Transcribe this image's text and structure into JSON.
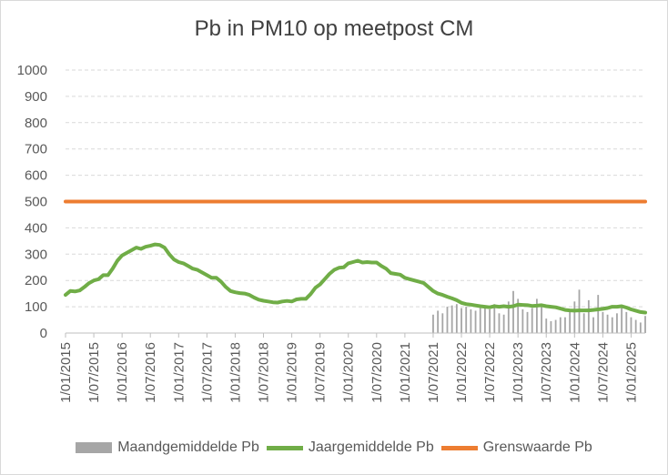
{
  "chart_data": {
    "type": "line",
    "title": "Pb in PM10 op meetpost CM",
    "xlabel": "",
    "ylabel": "",
    "ylim": [
      0,
      1000
    ],
    "yticks": [
      0,
      100,
      200,
      300,
      400,
      500,
      600,
      700,
      800,
      900,
      1000
    ],
    "xticks": [
      "1/01/2015",
      "1/07/2015",
      "1/01/2016",
      "1/07/2016",
      "1/01/2017",
      "1/07/2017",
      "1/01/2018",
      "1/07/2018",
      "1/01/2019",
      "1/07/2019",
      "1/01/2020",
      "1/07/2020",
      "1/01/2021",
      "1/07/2021",
      "1/01/2022",
      "1/07/2022",
      "1/01/2023",
      "1/07/2023",
      "1/01/2024",
      "1/07/2024",
      "1/01/2025"
    ],
    "x_unit": "months since 1/01/2015",
    "grid": true,
    "legend_position": "bottom",
    "series": [
      {
        "name": "Maandgemiddelde Pb",
        "type": "bar",
        "color": "#a6a6a6",
        "x": [
          78,
          79,
          80,
          81,
          82,
          83,
          84,
          85,
          86,
          87,
          88,
          89,
          90,
          91,
          92,
          93,
          94,
          95,
          96,
          97,
          98,
          99,
          100,
          101,
          102,
          103,
          104,
          105,
          106,
          107,
          108,
          109,
          110,
          111,
          112,
          113,
          114,
          115,
          116,
          117,
          118,
          119,
          120,
          121,
          122,
          123
        ],
        "values": [
          70,
          85,
          75,
          100,
          105,
          110,
          95,
          100,
          90,
          85,
          95,
          100,
          90,
          110,
          75,
          70,
          120,
          160,
          130,
          90,
          80,
          95,
          130,
          100,
          55,
          45,
          50,
          60,
          60,
          90,
          120,
          165,
          75,
          125,
          60,
          145,
          80,
          70,
          60,
          75,
          95,
          80,
          60,
          50,
          40,
          65
        ]
      },
      {
        "name": "Jaargemiddelde Pb",
        "type": "line",
        "color": "#70ad47",
        "x": [
          0,
          1,
          2,
          3,
          4,
          5,
          6,
          7,
          8,
          9,
          10,
          11,
          12,
          13,
          14,
          15,
          16,
          17,
          18,
          19,
          20,
          21,
          22,
          23,
          24,
          25,
          26,
          27,
          28,
          29,
          30,
          31,
          32,
          33,
          34,
          35,
          36,
          37,
          38,
          39,
          40,
          41,
          42,
          43,
          44,
          45,
          46,
          47,
          48,
          49,
          50,
          51,
          52,
          53,
          54,
          55,
          56,
          57,
          58,
          59,
          60,
          61,
          62,
          63,
          64,
          65,
          66,
          67,
          68,
          69,
          70,
          71,
          72,
          73,
          74,
          75,
          76,
          77,
          78,
          79,
          80,
          81,
          82,
          83,
          84,
          85,
          86,
          87,
          88,
          89,
          90,
          91,
          92,
          93,
          94,
          95,
          96,
          97,
          98,
          99,
          100,
          101,
          102,
          103,
          104,
          105,
          106,
          107,
          108,
          109,
          110,
          111,
          112,
          113,
          114,
          115,
          116,
          117,
          118,
          119,
          120,
          121,
          122,
          123
        ],
        "values": [
          145,
          160,
          158,
          162,
          175,
          190,
          200,
          205,
          220,
          220,
          245,
          275,
          295,
          305,
          315,
          325,
          320,
          328,
          332,
          337,
          335,
          325,
          300,
          280,
          270,
          265,
          255,
          245,
          240,
          230,
          220,
          210,
          210,
          195,
          175,
          160,
          155,
          152,
          150,
          145,
          135,
          127,
          123,
          120,
          117,
          116,
          120,
          122,
          120,
          128,
          130,
          130,
          148,
          172,
          185,
          205,
          225,
          240,
          248,
          250,
          265,
          270,
          275,
          268,
          270,
          268,
          268,
          255,
          245,
          228,
          225,
          222,
          210,
          205,
          200,
          195,
          190,
          175,
          160,
          150,
          145,
          138,
          132,
          125,
          115,
          110,
          108,
          105,
          102,
          100,
          98,
          102,
          100,
          102,
          100,
          102,
          108,
          107,
          106,
          103,
          104,
          106,
          102,
          100,
          98,
          93,
          88,
          86,
          85,
          86,
          86,
          86,
          88,
          90,
          92,
          95,
          100,
          100,
          102,
          97,
          90,
          85,
          80,
          78
        ]
      },
      {
        "name": "Grenswaarde Pb",
        "type": "line",
        "color": "#ed7d31",
        "x": [
          0,
          123
        ],
        "values": [
          500,
          500
        ]
      }
    ]
  }
}
